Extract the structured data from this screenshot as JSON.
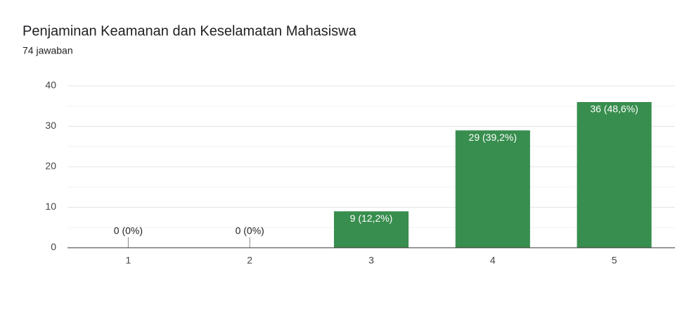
{
  "chart_data": {
    "type": "bar",
    "title": "Penjaminan Keamanan dan Keselamatan Mahasiswa",
    "subtitle": "74 jawaban",
    "categories": [
      "1",
      "2",
      "3",
      "4",
      "5"
    ],
    "values": [
      0,
      0,
      9,
      29,
      36
    ],
    "value_labels": [
      "0 (0%)",
      "0 (0%)",
      "9 (12,2%)",
      "29 (39,2%)",
      "36 (48,6%)"
    ],
    "color": "#388e4e",
    "ylim": [
      0,
      40
    ],
    "yticks": [
      0,
      10,
      20,
      30,
      40
    ],
    "yminorticks": [
      5,
      15,
      25,
      35
    ],
    "grid": true
  }
}
